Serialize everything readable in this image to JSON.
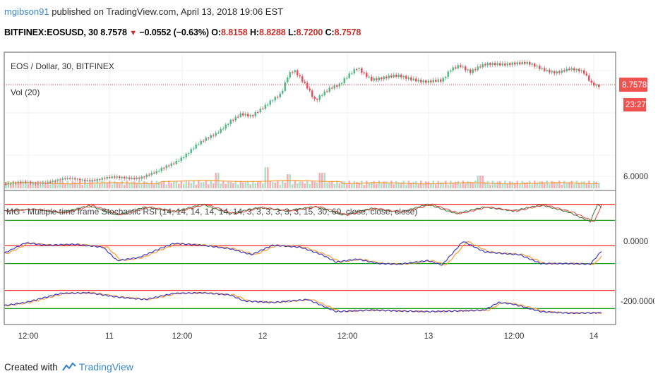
{
  "header": {
    "user": "mgibson91",
    "published": " published on TradingView.com, April 13, 2018 19:06 EST",
    "symbol": "BITFINEX:EOSUSD, 30",
    "last": "8.7578",
    "change": "−0.0552 (−0.63%)",
    "o_label": "O:",
    "o": "8.8158",
    "h_label": "H:",
    "h": "8.8288",
    "l_label": "L:",
    "l": "8.7200",
    "c_label": "C:",
    "c": "8.7578"
  },
  "main_pane": {
    "title": "EOS / Dollar, 30, BITFINEX",
    "vol_label": "Vol (20)",
    "price_label": "8.7578",
    "countdown": "23:27",
    "scale_label": "6.0000"
  },
  "indicator_pane": {
    "title": "MG - Multiple time frame Stochastic RSI (14, 14, 14, 14, 14, 14, 3, 3, 3, 3, 3, 3, 15, 30, 60, close, close, close)",
    "scale_labels": [
      "0.0000",
      "-200.0000"
    ]
  },
  "x_axis": {
    "ticks": [
      "12:00",
      "11",
      "12:00",
      "12",
      "12:00",
      "13",
      "12:00",
      "14"
    ]
  },
  "footer": {
    "created_with": "Created with",
    "brand": "TradingView"
  },
  "colors": {
    "up": "#53b987",
    "down": "#eb4d5c",
    "k_line": "#3b3bc4",
    "d_line": "#ff9a33",
    "upper_band": "#ff2a2a",
    "lower_band": "#1e9e1e",
    "price_tag": "#ef5350",
    "accent": "#3a87c9"
  },
  "chart_data": {
    "type": "candlestick",
    "price_knots": [
      [
        0,
        6.0
      ],
      [
        28,
        6.02
      ],
      [
        60,
        6.08
      ],
      [
        100,
        6.13
      ],
      [
        150,
        6.15
      ],
      [
        190,
        6.2
      ],
      [
        215,
        6.3
      ],
      [
        240,
        6.6
      ],
      [
        270,
        7.05
      ],
      [
        300,
        7.4
      ],
      [
        320,
        7.8
      ],
      [
        335,
        7.95
      ],
      [
        350,
        7.85
      ],
      [
        365,
        8.1
      ],
      [
        380,
        8.4
      ],
      [
        392,
        8.55
      ],
      [
        402,
        9.05
      ],
      [
        410,
        9.15
      ],
      [
        420,
        8.9
      ],
      [
        430,
        8.65
      ],
      [
        440,
        8.35
      ],
      [
        450,
        8.55
      ],
      [
        462,
        8.7
      ],
      [
        475,
        8.75
      ],
      [
        490,
        9.05
      ],
      [
        500,
        9.25
      ],
      [
        520,
        8.95
      ],
      [
        540,
        8.95
      ],
      [
        560,
        9.0
      ],
      [
        580,
        8.95
      ],
      [
        600,
        8.85
      ],
      [
        620,
        8.85
      ],
      [
        632,
        9.2
      ],
      [
        645,
        9.35
      ],
      [
        660,
        9.15
      ],
      [
        680,
        9.3
      ],
      [
        700,
        9.35
      ],
      [
        720,
        9.4
      ],
      [
        740,
        9.35
      ],
      [
        760,
        9.2
      ],
      [
        780,
        9.15
      ],
      [
        800,
        9.2
      ],
      [
        820,
        9.1
      ],
      [
        832,
        8.8
      ],
      [
        845,
        8.76
      ]
    ],
    "price_range": [
      5.9,
      9.6
    ],
    "volume_spikes": [
      [
        300,
        2.2
      ],
      [
        370,
        3.0
      ],
      [
        402,
        2.0
      ],
      [
        450,
        2.2
      ],
      [
        674,
        1.8
      ]
    ],
    "stoch_bands": {
      "upper": 80,
      "lower": 20
    },
    "stoch_15": [
      [
        0,
        55
      ],
      [
        40,
        62
      ],
      [
        80,
        48
      ],
      [
        120,
        75
      ],
      [
        160,
        40
      ],
      [
        200,
        70
      ],
      [
        240,
        52
      ],
      [
        280,
        80
      ],
      [
        320,
        45
      ],
      [
        360,
        68
      ],
      [
        400,
        55
      ],
      [
        440,
        72
      ],
      [
        480,
        40
      ],
      [
        520,
        65
      ],
      [
        560,
        50
      ],
      [
        600,
        80
      ],
      [
        640,
        45
      ],
      [
        680,
        70
      ],
      [
        720,
        55
      ],
      [
        760,
        78
      ],
      [
        800,
        50
      ],
      [
        830,
        15
      ],
      [
        840,
        78
      ],
      [
        846,
        70
      ]
    ],
    "stoch_30": [
      [
        0,
        55
      ],
      [
        30,
        90
      ],
      [
        60,
        82
      ],
      [
        100,
        85
      ],
      [
        140,
        75
      ],
      [
        160,
        30
      ],
      [
        190,
        40
      ],
      [
        220,
        70
      ],
      [
        240,
        88
      ],
      [
        280,
        82
      ],
      [
        320,
        70
      ],
      [
        350,
        50
      ],
      [
        380,
        82
      ],
      [
        420,
        75
      ],
      [
        450,
        50
      ],
      [
        470,
        25
      ],
      [
        500,
        35
      ],
      [
        530,
        20
      ],
      [
        560,
        18
      ],
      [
        600,
        30
      ],
      [
        620,
        15
      ],
      [
        650,
        95
      ],
      [
        680,
        60
      ],
      [
        700,
        55
      ],
      [
        730,
        50
      ],
      [
        760,
        20
      ],
      [
        800,
        20
      ],
      [
        830,
        18
      ],
      [
        846,
        62
      ]
    ],
    "stoch_60": [
      [
        0,
        30
      ],
      [
        30,
        40
      ],
      [
        80,
        70
      ],
      [
        120,
        72
      ],
      [
        160,
        58
      ],
      [
        200,
        50
      ],
      [
        240,
        70
      ],
      [
        280,
        72
      ],
      [
        320,
        65
      ],
      [
        340,
        45
      ],
      [
        380,
        40
      ],
      [
        430,
        50
      ],
      [
        470,
        10
      ],
      [
        520,
        15
      ],
      [
        560,
        12
      ],
      [
        600,
        10
      ],
      [
        640,
        12
      ],
      [
        680,
        15
      ],
      [
        700,
        40
      ],
      [
        720,
        35
      ],
      [
        760,
        10
      ],
      [
        800,
        5
      ],
      [
        846,
        6
      ]
    ]
  }
}
